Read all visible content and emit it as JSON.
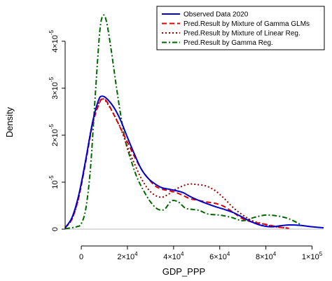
{
  "chart_data": {
    "type": "line",
    "xlabel": "GDP_PPP",
    "ylabel": "Density",
    "xlim": [
      -7000,
      105000
    ],
    "ylim": [
      0,
      4.55e-05
    ],
    "x_ticks": [
      {
        "value": 0,
        "label": "0",
        "exp": ""
      },
      {
        "value": 20000,
        "label": "2×10",
        "exp": "4"
      },
      {
        "value": 40000,
        "label": "4×10",
        "exp": "4"
      },
      {
        "value": 60000,
        "label": "6×10",
        "exp": "4"
      },
      {
        "value": 80000,
        "label": "8×10",
        "exp": "4"
      },
      {
        "value": 100000,
        "label": "1×10",
        "exp": "5"
      }
    ],
    "y_ticks": [
      {
        "value": 0,
        "label": "0",
        "exp": ""
      },
      {
        "value": 1e-05,
        "label": "10",
        "exp": "-5"
      },
      {
        "value": 2e-05,
        "label": "2×10",
        "exp": "-5"
      },
      {
        "value": 3e-05,
        "label": "3×10",
        "exp": "-5"
      },
      {
        "value": 4e-05,
        "label": "4×10",
        "exp": "-5"
      }
    ],
    "legend_position": "top-right",
    "series": [
      {
        "name": "Observed Data 2020",
        "color": "#0000cc",
        "style": "solid",
        "x": [
          -7000,
          -4000,
          -1000,
          2000,
          5000,
          7500,
          9000,
          11000,
          14000,
          17000,
          20000,
          23000,
          26000,
          29000,
          32000,
          35000,
          38000,
          41000,
          44000,
          47000,
          50000,
          54000,
          58000,
          62000,
          66000,
          70000,
          74000,
          78000,
          82000,
          86000,
          90000,
          95000,
          100000,
          105000
        ],
        "y": [
          3e-07,
          2.5e-06,
          7.5e-06,
          1.5e-05,
          2.3e-05,
          2.75e-05,
          2.83e-05,
          2.78e-05,
          2.6e-05,
          2.32e-05,
          1.95e-05,
          1.6e-05,
          1.28e-05,
          1.08e-05,
          9.6e-06,
          8.8e-06,
          8.5e-06,
          8.2e-06,
          7.8e-06,
          7e-06,
          6.3e-06,
          5.5e-06,
          4.8e-06,
          4.2e-06,
          3.5e-06,
          2.5e-06,
          1.5e-06,
          8e-07,
          5e-07,
          7e-07,
          9e-07,
          8e-07,
          5e-07,
          3e-07
        ]
      },
      {
        "name": "Pred.Result by Mixture of Gamma GLMs",
        "color": "#dd0000",
        "style": "dashed",
        "x": [
          -7000,
          -4000,
          -1000,
          2000,
          5000,
          8000,
          9500,
          11000,
          14000,
          17000,
          20000,
          23000,
          26000,
          29000,
          32000,
          35000,
          38000,
          41000,
          44000,
          47000,
          50000,
          54000,
          58000,
          62000,
          66000,
          70000,
          74000,
          78000,
          82000,
          86000,
          90000
        ],
        "y": [
          3e-07,
          2.2e-06,
          7e-06,
          1.45e-05,
          2.25e-05,
          2.7e-05,
          2.77e-05,
          2.72e-05,
          2.45e-05,
          2.15e-05,
          1.85e-05,
          1.55e-05,
          1.28e-05,
          1.08e-05,
          9.2e-06,
          8.5e-06,
          8.2e-06,
          7.8e-06,
          7.2e-06,
          6.5e-06,
          6.2e-06,
          5.8e-06,
          5.5e-06,
          4.8e-06,
          3.5e-06,
          2.2e-06,
          1.5e-06,
          1.2e-06,
          8e-07,
          4e-07,
          2e-07
        ]
      },
      {
        "name": "Pred.Result by Mixture of Linear Reg.",
        "color": "#990000",
        "style": "dotted",
        "x": [
          -7000,
          -4000,
          -1000,
          2000,
          5000,
          8000,
          9500,
          11000,
          14000,
          17000,
          20000,
          23000,
          26000,
          29000,
          32000,
          35000,
          38000,
          41000,
          44000,
          47000,
          50000,
          54000,
          58000,
          62000,
          66000,
          70000,
          74000,
          78000,
          82000,
          86000,
          90000
        ],
        "y": [
          3e-07,
          2.2e-06,
          7e-06,
          1.5e-05,
          2.3e-05,
          2.72e-05,
          2.77e-05,
          2.7e-05,
          2.45e-05,
          2.15e-05,
          1.75e-05,
          1.4e-05,
          1.08e-05,
          8.5e-06,
          7.2e-06,
          6.8e-06,
          7.5e-06,
          8.5e-06,
          9.2e-06,
          9.6e-06,
          9.5e-06,
          9.2e-06,
          8.2e-06,
          6.5e-06,
          4.5e-06,
          3e-06,
          1.8e-06,
          1.2e-06,
          7e-07,
          4e-07,
          2e-07
        ]
      },
      {
        "name": "Pred.Result by Gamma Reg.",
        "color": "#006600",
        "style": "dashdot",
        "x": [
          -7000,
          -2000,
          0,
          2000,
          4000,
          6000,
          8000,
          9500,
          11000,
          13000,
          15000,
          17000,
          19000,
          21000,
          24000,
          27000,
          30000,
          33000,
          36000,
          39000,
          42000,
          45000,
          48000,
          51000,
          55000,
          60000,
          65000,
          70000,
          75000,
          80000,
          85000,
          90000,
          95000
        ],
        "y": [
          1e-07,
          5e-07,
          1.2e-06,
          4.5e-06,
          1.3e-05,
          2.8e-05,
          4.2e-05,
          4.55e-05,
          4.4e-05,
          3.8e-05,
          3.1e-05,
          2.45e-05,
          1.9e-05,
          1.55e-05,
          1.12e-05,
          8.2e-06,
          5.8e-06,
          4.3e-06,
          4.2e-06,
          6e-06,
          5.8e-06,
          4.5e-06,
          4.2e-06,
          4e-06,
          3.2e-06,
          3e-06,
          2.5e-06,
          1.8e-06,
          2.5e-06,
          3e-06,
          2.8e-06,
          2.2e-06,
          1e-06
        ]
      }
    ]
  }
}
